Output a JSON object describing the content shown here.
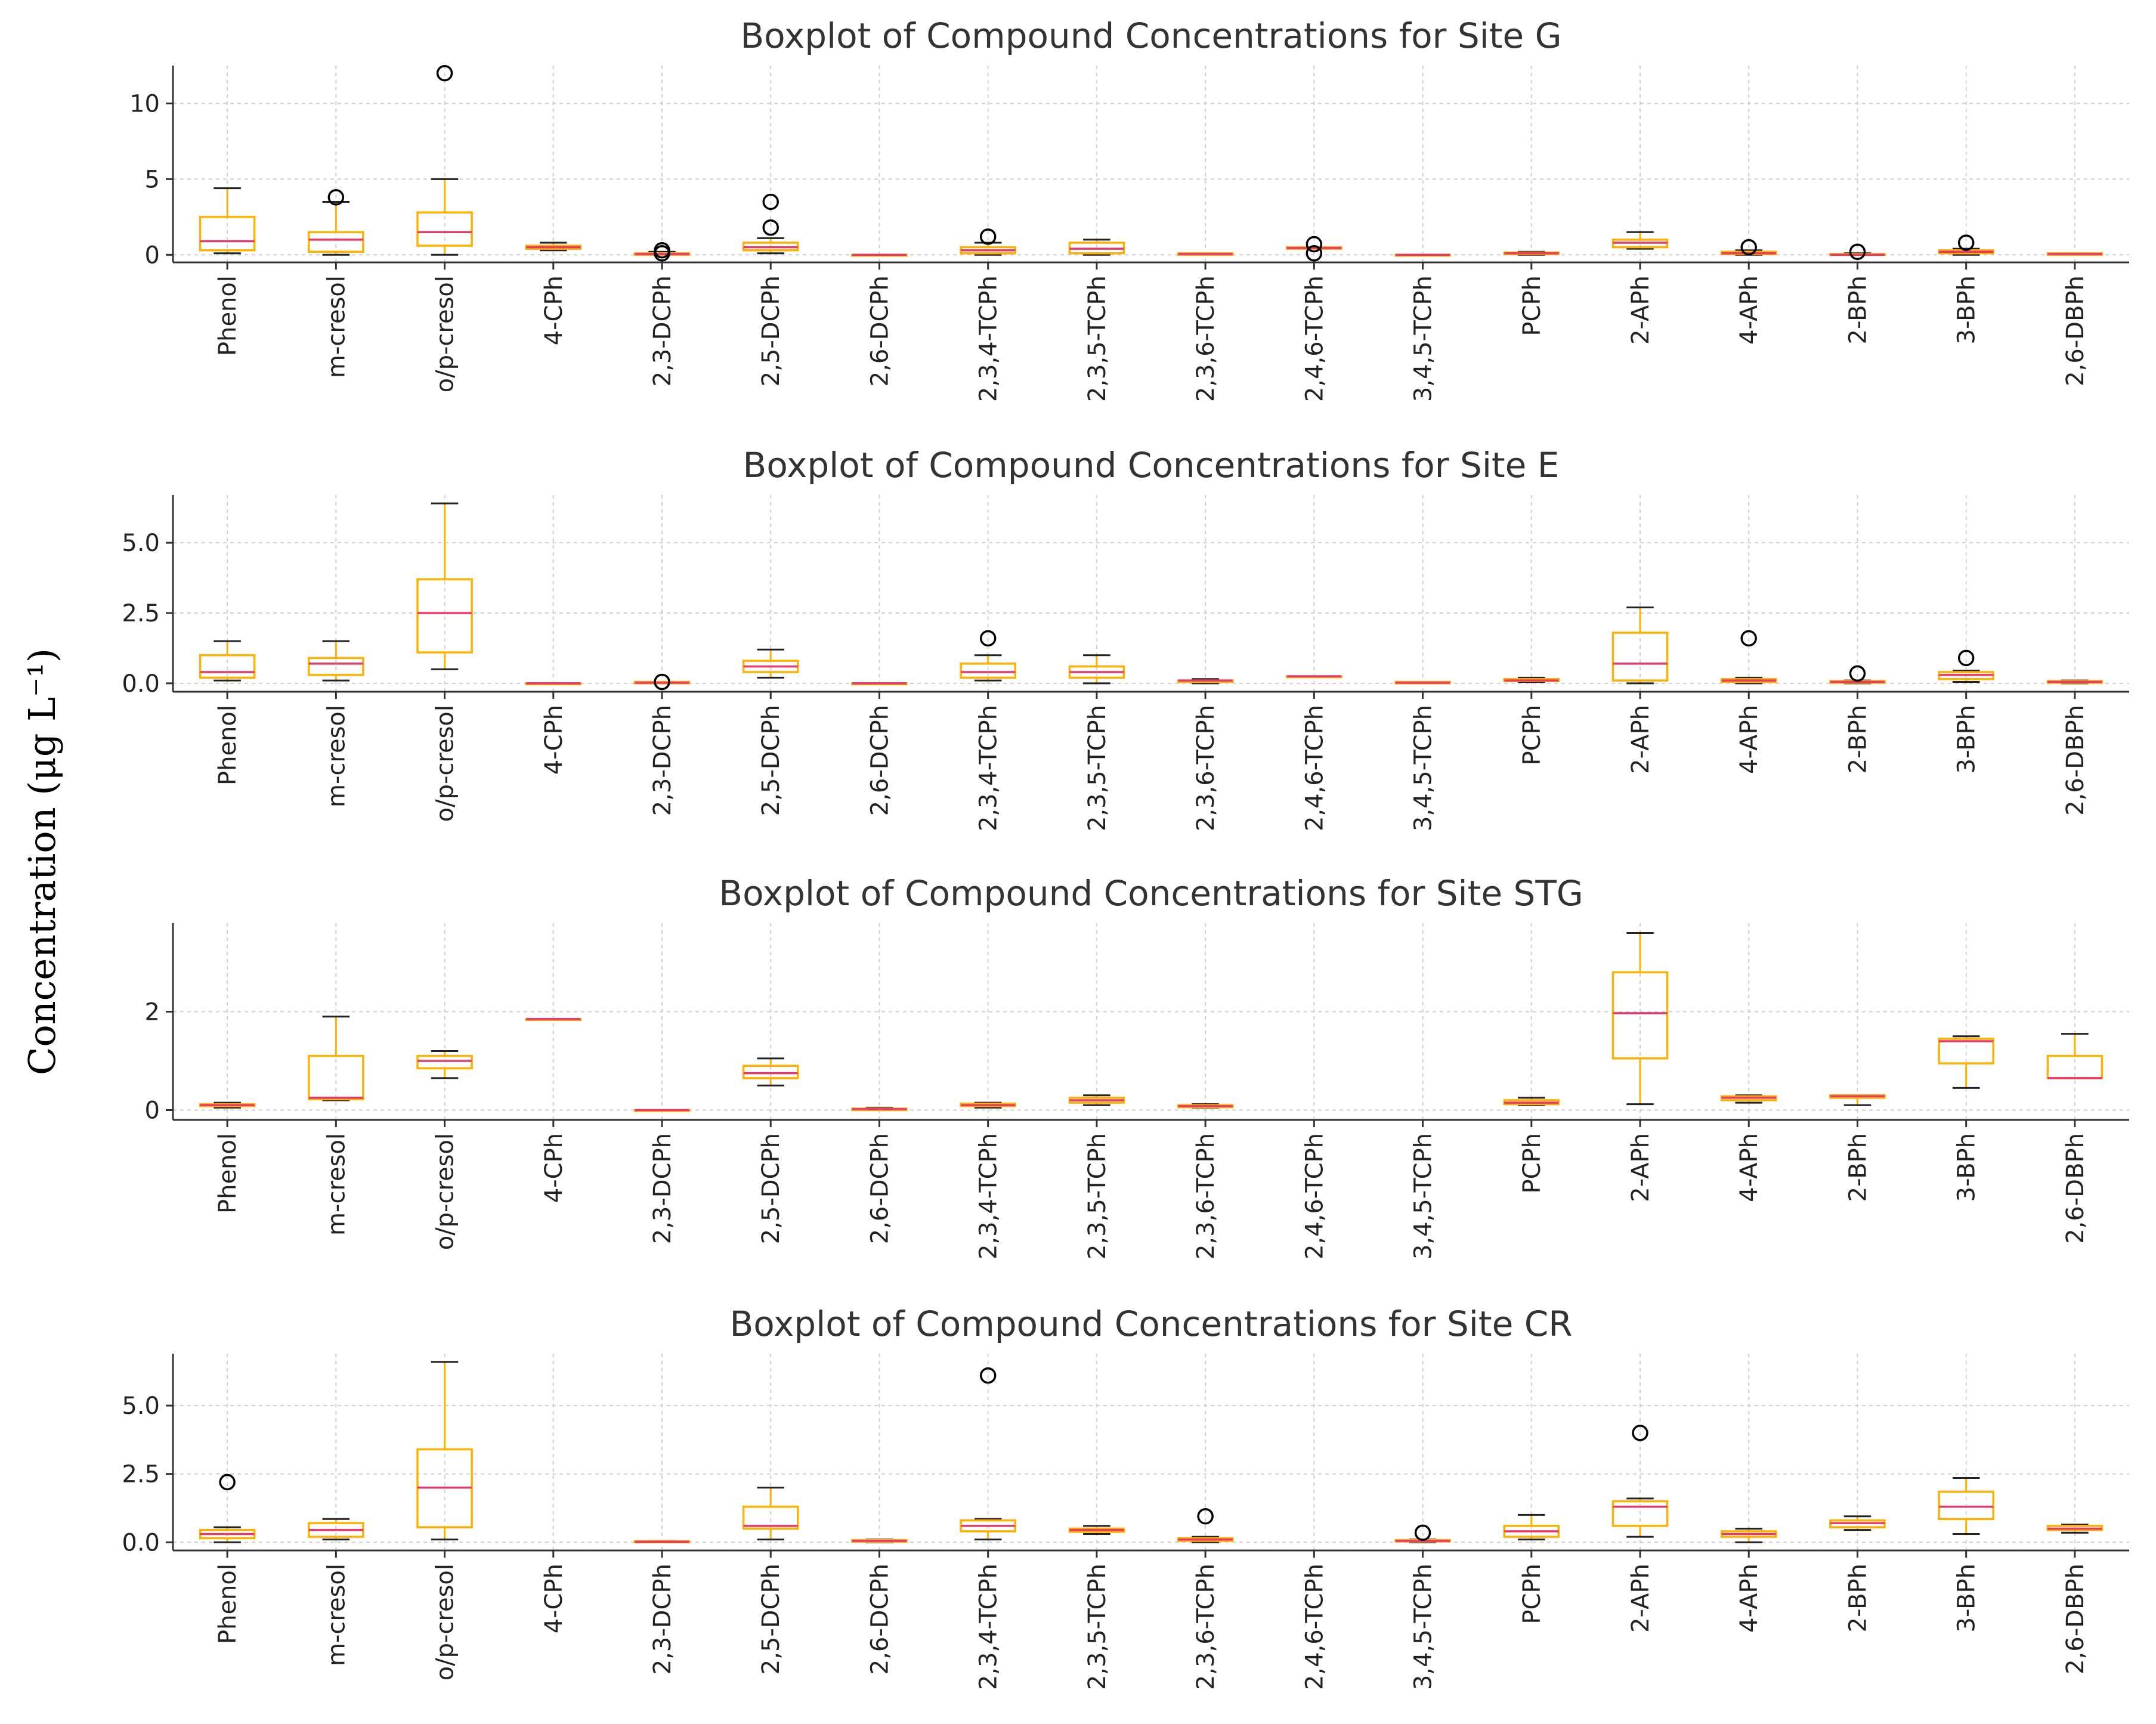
{
  "ylabel": "Concentration (μg L⁻¹)",
  "colors": {
    "box": "#FFB000",
    "median": "#E83A6A",
    "whisker": "#FFB000",
    "cap": "#222222",
    "outlier": "#000000"
  },
  "chart_data": [
    {
      "type": "boxplot",
      "title": "Boxplot of Compound Concentrations for Site G",
      "xlabel": "",
      "ylim": [
        -0.5,
        12.5
      ],
      "yticks": [
        0,
        5,
        10
      ],
      "ytick_labels": [
        "0",
        "5",
        "10"
      ],
      "categories": [
        "Phenol",
        "m-cresol",
        "o/p-cresol",
        "4-CPh",
        "2,3-DCPh",
        "2,5-DCPh",
        "2,6-DCPh",
        "2,3,4-TCPh",
        "2,3,5-TCPh",
        "2,3,6-TCPh",
        "2,4,6-TCPh",
        "3,4,5-TCPh",
        "PCPh",
        "2-APh",
        "4-APh",
        "2-BPh",
        "3-BPh",
        "2,6-DBPh"
      ],
      "boxes": [
        {
          "min": 0.1,
          "q1": 0.3,
          "median": 0.9,
          "q3": 2.5,
          "max": 4.4,
          "outliers": []
        },
        {
          "min": 0.0,
          "q1": 0.2,
          "median": 1.0,
          "q3": 1.5,
          "max": 3.5,
          "outliers": [
            3.8
          ]
        },
        {
          "min": 0.0,
          "q1": 0.6,
          "median": 1.5,
          "q3": 2.8,
          "max": 5.0,
          "outliers": [
            12.0
          ]
        },
        {
          "min": 0.3,
          "q1": 0.4,
          "median": 0.5,
          "q3": 0.6,
          "max": 0.8,
          "outliers": []
        },
        {
          "min": 0.0,
          "q1": 0.0,
          "median": 0.05,
          "q3": 0.1,
          "max": 0.2,
          "outliers": [
            0.3,
            0.1
          ]
        },
        {
          "min": 0.1,
          "q1": 0.3,
          "median": 0.5,
          "q3": 0.8,
          "max": 1.1,
          "outliers": [
            1.8,
            3.5
          ]
        },
        {
          "min": 0.0,
          "q1": 0.0,
          "median": 0.0,
          "q3": 0.0,
          "max": 0.0,
          "outliers": []
        },
        {
          "min": 0.0,
          "q1": 0.1,
          "median": 0.3,
          "q3": 0.5,
          "max": 0.8,
          "outliers": [
            1.2
          ]
        },
        {
          "min": 0.0,
          "q1": 0.1,
          "median": 0.4,
          "q3": 0.8,
          "max": 1.0,
          "outliers": []
        },
        {
          "min": 0.0,
          "q1": 0.0,
          "median": 0.05,
          "q3": 0.1,
          "max": 0.1,
          "outliers": []
        },
        {
          "min": 0.4,
          "q1": 0.4,
          "median": 0.45,
          "q3": 0.5,
          "max": 0.5,
          "outliers": [
            0.7,
            0.1
          ]
        },
        {
          "min": 0.0,
          "q1": 0.0,
          "median": 0.0,
          "q3": 0.0,
          "max": 0.0,
          "outliers": []
        },
        {
          "min": 0.0,
          "q1": 0.05,
          "median": 0.1,
          "q3": 0.15,
          "max": 0.2,
          "outliers": []
        },
        {
          "min": 0.4,
          "q1": 0.5,
          "median": 0.8,
          "q3": 1.0,
          "max": 1.5,
          "outliers": []
        },
        {
          "min": 0.0,
          "q1": 0.05,
          "median": 0.1,
          "q3": 0.2,
          "max": 0.3,
          "outliers": [
            0.5
          ]
        },
        {
          "min": 0.0,
          "q1": 0.0,
          "median": 0.0,
          "q3": 0.05,
          "max": 0.1,
          "outliers": [
            0.2
          ]
        },
        {
          "min": 0.0,
          "q1": 0.1,
          "median": 0.2,
          "q3": 0.3,
          "max": 0.4,
          "outliers": [
            0.8
          ]
        },
        {
          "min": 0.0,
          "q1": 0.0,
          "median": 0.05,
          "q3": 0.1,
          "max": 0.1,
          "outliers": []
        }
      ]
    },
    {
      "type": "boxplot",
      "title": "Boxplot of Compound Concentrations for Site E",
      "xlabel": "",
      "ylim": [
        -0.3,
        6.7
      ],
      "yticks": [
        0,
        2.5,
        5.0
      ],
      "ytick_labels": [
        "0.0",
        "2.5",
        "5.0"
      ],
      "categories": [
        "Phenol",
        "m-cresol",
        "o/p-cresol",
        "4-CPh",
        "2,3-DCPh",
        "2,5-DCPh",
        "2,6-DCPh",
        "2,3,4-TCPh",
        "2,3,5-TCPh",
        "2,3,6-TCPh",
        "2,4,6-TCPh",
        "3,4,5-TCPh",
        "PCPh",
        "2-APh",
        "4-APh",
        "2-BPh",
        "3-BPh",
        "2,6-DBPh"
      ],
      "boxes": [
        {
          "min": 0.1,
          "q1": 0.2,
          "median": 0.4,
          "q3": 1.0,
          "max": 1.5,
          "outliers": []
        },
        {
          "min": 0.1,
          "q1": 0.3,
          "median": 0.7,
          "q3": 0.9,
          "max": 1.5,
          "outliers": []
        },
        {
          "min": 0.5,
          "q1": 1.1,
          "median": 2.5,
          "q3": 3.7,
          "max": 6.4,
          "outliers": []
        },
        {
          "min": 0.0,
          "q1": 0.0,
          "median": 0.0,
          "q3": 0.0,
          "max": 0.0,
          "outliers": []
        },
        {
          "min": 0.0,
          "q1": 0.0,
          "median": 0.02,
          "q3": 0.05,
          "max": 0.05,
          "outliers": [
            0.05
          ]
        },
        {
          "min": 0.2,
          "q1": 0.4,
          "median": 0.6,
          "q3": 0.8,
          "max": 1.2,
          "outliers": []
        },
        {
          "min": 0.0,
          "q1": 0.0,
          "median": 0.0,
          "q3": 0.0,
          "max": 0.0,
          "outliers": []
        },
        {
          "min": 0.1,
          "q1": 0.2,
          "median": 0.4,
          "q3": 0.7,
          "max": 1.0,
          "outliers": [
            1.6
          ]
        },
        {
          "min": 0.0,
          "q1": 0.2,
          "median": 0.4,
          "q3": 0.6,
          "max": 1.0,
          "outliers": []
        },
        {
          "min": 0.0,
          "q1": 0.05,
          "median": 0.1,
          "q3": 0.1,
          "max": 0.15,
          "outliers": []
        },
        {
          "min": 0.25,
          "q1": 0.25,
          "median": 0.25,
          "q3": 0.25,
          "max": 0.25,
          "outliers": []
        },
        {
          "min": 0.0,
          "q1": 0.0,
          "median": 0.02,
          "q3": 0.05,
          "max": 0.05,
          "outliers": []
        },
        {
          "min": 0.05,
          "q1": 0.08,
          "median": 0.1,
          "q3": 0.15,
          "max": 0.2,
          "outliers": []
        },
        {
          "min": 0.0,
          "q1": 0.1,
          "median": 0.7,
          "q3": 1.8,
          "max": 2.7,
          "outliers": []
        },
        {
          "min": 0.0,
          "q1": 0.05,
          "median": 0.1,
          "q3": 0.15,
          "max": 0.2,
          "outliers": [
            1.6
          ]
        },
        {
          "min": 0.0,
          "q1": 0.02,
          "median": 0.05,
          "q3": 0.08,
          "max": 0.1,
          "outliers": [
            0.35
          ]
        },
        {
          "min": 0.05,
          "q1": 0.15,
          "median": 0.3,
          "q3": 0.4,
          "max": 0.45,
          "outliers": [
            0.9
          ]
        },
        {
          "min": 0.0,
          "q1": 0.02,
          "median": 0.05,
          "q3": 0.08,
          "max": 0.1,
          "outliers": []
        }
      ]
    },
    {
      "type": "boxplot",
      "title": "Boxplot of Compound Concentrations for Site STG",
      "xlabel": "",
      "ylim": [
        -0.2,
        3.8
      ],
      "yticks": [
        0,
        2
      ],
      "ytick_labels": [
        "0",
        "2"
      ],
      "categories": [
        "Phenol",
        "m-cresol",
        "o/p-cresol",
        "4-CPh",
        "2,3-DCPh",
        "2,5-DCPh",
        "2,6-DCPh",
        "2,3,4-TCPh",
        "2,3,5-TCPh",
        "2,3,6-TCPh",
        "2,4,6-TCPh",
        "3,4,5-TCPh",
        "PCPh",
        "2-APh",
        "4-APh",
        "2-BPh",
        "3-BPh",
        "2,6-DBPh"
      ],
      "boxes": [
        {
          "min": 0.05,
          "q1": 0.08,
          "median": 0.1,
          "q3": 0.12,
          "max": 0.15,
          "outliers": []
        },
        {
          "min": 0.2,
          "q1": 0.22,
          "median": 0.25,
          "q3": 1.1,
          "max": 1.9,
          "outliers": []
        },
        {
          "min": 0.65,
          "q1": 0.85,
          "median": 1.0,
          "q3": 1.1,
          "max": 1.2,
          "outliers": []
        },
        {
          "min": 1.85,
          "q1": 1.85,
          "median": 1.85,
          "q3": 1.85,
          "max": 1.85,
          "outliers": []
        },
        {
          "min": 0.0,
          "q1": 0.0,
          "median": 0.0,
          "q3": 0.0,
          "max": 0.0,
          "outliers": []
        },
        {
          "min": 0.5,
          "q1": 0.65,
          "median": 0.75,
          "q3": 0.9,
          "max": 1.05,
          "outliers": []
        },
        {
          "min": 0.0,
          "q1": 0.0,
          "median": 0.02,
          "q3": 0.03,
          "max": 0.05,
          "outliers": []
        },
        {
          "min": 0.05,
          "q1": 0.08,
          "median": 0.1,
          "q3": 0.13,
          "max": 0.15,
          "outliers": []
        },
        {
          "min": 0.1,
          "q1": 0.15,
          "median": 0.2,
          "q3": 0.25,
          "max": 0.3,
          "outliers": []
        },
        {
          "min": 0.05,
          "q1": 0.06,
          "median": 0.08,
          "q3": 0.1,
          "max": 0.12,
          "outliers": []
        },
        {
          "min": null,
          "q1": null,
          "median": null,
          "q3": null,
          "max": null,
          "outliers": []
        },
        {
          "min": null,
          "q1": null,
          "median": null,
          "q3": null,
          "max": null,
          "outliers": []
        },
        {
          "min": 0.1,
          "q1": 0.12,
          "median": 0.15,
          "q3": 0.2,
          "max": 0.25,
          "outliers": []
        },
        {
          "min": 0.12,
          "q1": 1.05,
          "median": 1.97,
          "q3": 2.8,
          "max": 3.6,
          "outliers": []
        },
        {
          "min": 0.15,
          "q1": 0.2,
          "median": 0.25,
          "q3": 0.28,
          "max": 0.3,
          "outliers": []
        },
        {
          "min": 0.1,
          "q1": 0.25,
          "median": 0.28,
          "q3": 0.3,
          "max": 0.3,
          "outliers": []
        },
        {
          "min": 0.45,
          "q1": 0.95,
          "median": 1.4,
          "q3": 1.45,
          "max": 1.5,
          "outliers": []
        },
        {
          "min": 0.65,
          "q1": 0.65,
          "median": 0.65,
          "q3": 1.1,
          "max": 1.55,
          "outliers": []
        }
      ]
    },
    {
      "type": "boxplot",
      "title": "Boxplot of Compound Concentrations for Site CR",
      "xlabel": "",
      "ylim": [
        -0.3,
        6.9
      ],
      "yticks": [
        0,
        2.5,
        5.0
      ],
      "ytick_labels": [
        "0.0",
        "2.5",
        "5.0"
      ],
      "categories": [
        "Phenol",
        "m-cresol",
        "o/p-cresol",
        "4-CPh",
        "2,3-DCPh",
        "2,5-DCPh",
        "2,6-DCPh",
        "2,3,4-TCPh",
        "2,3,5-TCPh",
        "2,3,6-TCPh",
        "2,4,6-TCPh",
        "3,4,5-TCPh",
        "PCPh",
        "2-APh",
        "4-APh",
        "2-BPh",
        "3-BPh",
        "2,6-DBPh"
      ],
      "boxes": [
        {
          "min": 0.0,
          "q1": 0.15,
          "median": 0.3,
          "q3": 0.45,
          "max": 0.55,
          "outliers": [
            2.2
          ]
        },
        {
          "min": 0.1,
          "q1": 0.2,
          "median": 0.45,
          "q3": 0.7,
          "max": 0.85,
          "outliers": []
        },
        {
          "min": 0.1,
          "q1": 0.55,
          "median": 2.0,
          "q3": 3.4,
          "max": 6.6,
          "outliers": []
        },
        {
          "min": null,
          "q1": null,
          "median": null,
          "q3": null,
          "max": null,
          "outliers": []
        },
        {
          "min": 0.0,
          "q1": 0.0,
          "median": 0.02,
          "q3": 0.04,
          "max": 0.05,
          "outliers": []
        },
        {
          "min": 0.1,
          "q1": 0.5,
          "median": 0.6,
          "q3": 1.3,
          "max": 2.0,
          "outliers": []
        },
        {
          "min": 0.0,
          "q1": 0.02,
          "median": 0.05,
          "q3": 0.08,
          "max": 0.1,
          "outliers": []
        },
        {
          "min": 0.1,
          "q1": 0.4,
          "median": 0.6,
          "q3": 0.8,
          "max": 0.85,
          "outliers": [
            6.1
          ]
        },
        {
          "min": 0.3,
          "q1": 0.38,
          "median": 0.45,
          "q3": 0.5,
          "max": 0.6,
          "outliers": []
        },
        {
          "min": 0.0,
          "q1": 0.05,
          "median": 0.1,
          "q3": 0.15,
          "max": 0.2,
          "outliers": [
            0.95
          ]
        },
        {
          "min": null,
          "q1": null,
          "median": null,
          "q3": null,
          "max": null,
          "outliers": []
        },
        {
          "min": 0.0,
          "q1": 0.03,
          "median": 0.05,
          "q3": 0.08,
          "max": 0.1,
          "outliers": [
            0.35
          ]
        },
        {
          "min": 0.1,
          "q1": 0.2,
          "median": 0.4,
          "q3": 0.6,
          "max": 1.0,
          "outliers": []
        },
        {
          "min": 0.2,
          "q1": 0.6,
          "median": 1.3,
          "q3": 1.5,
          "max": 1.6,
          "outliers": [
            4.0
          ]
        },
        {
          "min": 0.0,
          "q1": 0.2,
          "median": 0.3,
          "q3": 0.4,
          "max": 0.5,
          "outliers": []
        },
        {
          "min": 0.45,
          "q1": 0.55,
          "median": 0.7,
          "q3": 0.8,
          "max": 0.95,
          "outliers": []
        },
        {
          "min": 0.3,
          "q1": 0.85,
          "median": 1.3,
          "q3": 1.85,
          "max": 2.35,
          "outliers": []
        },
        {
          "min": 0.35,
          "q1": 0.45,
          "median": 0.5,
          "q3": 0.6,
          "max": 0.65,
          "outliers": []
        }
      ]
    }
  ]
}
